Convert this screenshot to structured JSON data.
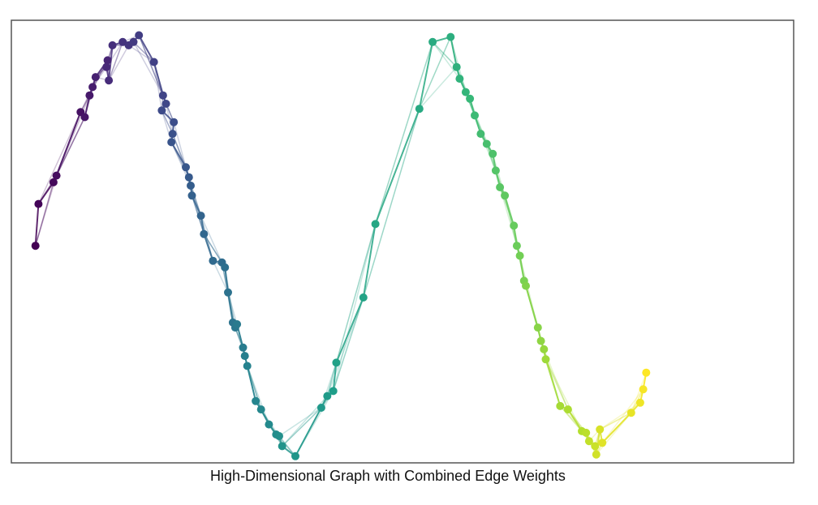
{
  "caption": "High-Dimensional Graph with Combined Edge Weights",
  "chart_data": {
    "type": "scatter",
    "title": "",
    "xlabel": "",
    "ylabel": "",
    "axes_ticks": false,
    "grid": false,
    "frame_color": "#555555",
    "colormap": "viridis",
    "colormap_stops": [
      "#440154",
      "#482878",
      "#3e4989",
      "#31688e",
      "#26828e",
      "#1f9e89",
      "#35b779",
      "#6ece58",
      "#b5de2b",
      "#fde725"
    ],
    "xlim": [
      -0.4,
      12.6
    ],
    "ylim": [
      -1.3,
      1.35
    ],
    "points": [
      [
        0.0,
        0.0
      ],
      [
        0.05,
        0.25
      ],
      [
        0.3,
        0.38
      ],
      [
        0.35,
        0.42
      ],
      [
        0.75,
        0.8
      ],
      [
        0.82,
        0.77
      ],
      [
        0.9,
        0.9
      ],
      [
        0.95,
        0.95
      ],
      [
        1.0,
        1.01
      ],
      [
        1.2,
        1.11
      ],
      [
        1.18,
        1.07
      ],
      [
        1.22,
        0.99
      ],
      [
        1.28,
        1.2
      ],
      [
        1.45,
        1.22
      ],
      [
        1.55,
        1.2
      ],
      [
        1.63,
        1.22
      ],
      [
        1.72,
        1.26
      ],
      [
        1.97,
        1.1
      ],
      [
        2.12,
        0.9
      ],
      [
        2.17,
        0.85
      ],
      [
        2.1,
        0.81
      ],
      [
        2.3,
        0.74
      ],
      [
        2.28,
        0.67
      ],
      [
        2.26,
        0.62
      ],
      [
        2.5,
        0.47
      ],
      [
        2.55,
        0.41
      ],
      [
        2.58,
        0.36
      ],
      [
        2.6,
        0.3
      ],
      [
        2.75,
        0.18
      ],
      [
        2.8,
        0.07
      ],
      [
        2.95,
        -0.09
      ],
      [
        3.1,
        -0.1
      ],
      [
        3.15,
        -0.13
      ],
      [
        3.2,
        -0.28
      ],
      [
        3.28,
        -0.46
      ],
      [
        3.32,
        -0.49
      ],
      [
        3.35,
        -0.47
      ],
      [
        3.45,
        -0.61
      ],
      [
        3.48,
        -0.66
      ],
      [
        3.52,
        -0.72
      ],
      [
        3.66,
        -0.93
      ],
      [
        3.75,
        -0.98
      ],
      [
        3.88,
        -1.07
      ],
      [
        4.0,
        -1.13
      ],
      [
        4.05,
        -1.14
      ],
      [
        4.1,
        -1.2
      ],
      [
        4.32,
        -1.26
      ],
      [
        4.75,
        -0.97
      ],
      [
        4.85,
        -0.9
      ],
      [
        4.95,
        -0.87
      ],
      [
        5.0,
        -0.7
      ],
      [
        5.45,
        -0.31
      ],
      [
        5.65,
        0.13
      ],
      [
        6.38,
        0.82
      ],
      [
        6.6,
        1.22
      ],
      [
        6.9,
        1.25
      ],
      [
        7.0,
        1.07
      ],
      [
        7.05,
        1.0
      ],
      [
        7.15,
        0.92
      ],
      [
        7.22,
        0.88
      ],
      [
        7.3,
        0.78
      ],
      [
        7.4,
        0.67
      ],
      [
        7.5,
        0.61
      ],
      [
        7.6,
        0.55
      ],
      [
        7.65,
        0.45
      ],
      [
        7.72,
        0.35
      ],
      [
        7.8,
        0.3
      ],
      [
        7.95,
        0.12
      ],
      [
        8.0,
        0.0
      ],
      [
        8.05,
        -0.06
      ],
      [
        8.12,
        -0.21
      ],
      [
        8.15,
        -0.24
      ],
      [
        8.35,
        -0.49
      ],
      [
        8.4,
        -0.57
      ],
      [
        8.45,
        -0.62
      ],
      [
        8.48,
        -0.68
      ],
      [
        8.72,
        -0.96
      ],
      [
        8.85,
        -0.98
      ],
      [
        9.08,
        -1.11
      ],
      [
        9.15,
        -1.12
      ],
      [
        9.2,
        -1.17
      ],
      [
        9.3,
        -1.2
      ],
      [
        9.32,
        -1.25
      ],
      [
        9.38,
        -1.1
      ],
      [
        9.42,
        -1.18
      ],
      [
        9.9,
        -1.0
      ],
      [
        10.05,
        -0.94
      ],
      [
        10.1,
        -0.86
      ],
      [
        10.15,
        -0.76
      ]
    ],
    "edges_note": "edges connect neighbouring points with varying opacity"
  }
}
